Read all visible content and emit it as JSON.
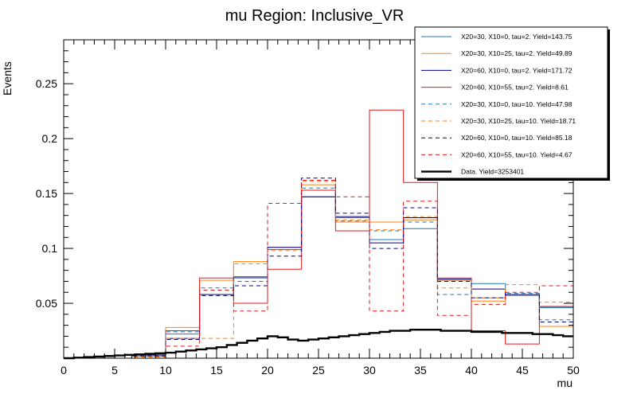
{
  "chart_data": {
    "type": "step",
    "title": "mu Region: Inclusive_VR",
    "xlabel": "mu",
    "ylabel": "Events",
    "xlim": [
      0,
      50
    ],
    "ylim": [
      0,
      0.29
    ],
    "xticks": [
      0,
      5,
      10,
      15,
      20,
      25,
      30,
      35,
      40,
      45,
      50
    ],
    "xtick_labels": [
      "0",
      "5",
      "10",
      "15",
      "20",
      "25",
      "30",
      "35",
      "40",
      "45",
      "50"
    ],
    "yticks": [
      0.05,
      0.1,
      0.15,
      0.2,
      0.25
    ],
    "ytick_labels": [
      "0.05",
      "0.1",
      "0.15",
      "0.2",
      "0.25"
    ],
    "bin_edges": [
      0,
      3.33,
      6.67,
      10,
      13.33,
      16.67,
      20,
      23.33,
      26.67,
      30,
      33.33,
      36.67,
      40,
      43.33,
      46.67,
      50
    ],
    "series": [
      {
        "name": "X20=30, X10=0, tau=2. Yield=143.75",
        "color": "#1f77b4",
        "dash": false,
        "width": 1,
        "values": [
          0,
          0,
          0.002,
          0.022,
          0.058,
          0.073,
          0.099,
          0.147,
          0.128,
          0.108,
          0.118,
          0.071,
          0.068,
          0.057,
          0.046
        ]
      },
      {
        "name": "X20=30, X10=25, tau=2. Yield=49.89",
        "color": "#ff7f0e",
        "dash": false,
        "width": 1,
        "values": [
          0,
          0,
          0.003,
          0.028,
          0.071,
          0.088,
          0.101,
          0.158,
          0.124,
          0.124,
          0.126,
          0.071,
          0.052,
          0.057,
          0.029
        ]
      },
      {
        "name": "X20=60, X10=0, tau=2. Yield=171.72",
        "color": "#00008b",
        "dash": false,
        "width": 1,
        "values": [
          0,
          0,
          0.003,
          0.018,
          0.058,
          0.074,
          0.101,
          0.147,
          0.129,
          0.105,
          0.128,
          0.072,
          0.063,
          0.058,
          0.047
        ]
      },
      {
        "name": "X20=60, X10=55, tau=2. Yield=8.61",
        "color": "#e31a1c",
        "dash": false,
        "width": 1,
        "values": [
          0,
          0,
          0,
          0.025,
          0.073,
          0.05,
          0.081,
          0.153,
          0.116,
          0.226,
          0.16,
          0.073,
          0.025,
          0.013,
          0.047
        ]
      },
      {
        "name": "X20=30, X10=0, tau=10. Yield=47.98",
        "color": "#1f77b4",
        "dash": true,
        "width": 1,
        "values": [
          0,
          0,
          0.002,
          0.024,
          0.064,
          0.07,
          0.099,
          0.155,
          0.125,
          0.116,
          0.124,
          0.058,
          0.055,
          0.059,
          0.035
        ]
      },
      {
        "name": "X20=30, X10=25, tau=10. Yield=18.71",
        "color": "#ff7f0e",
        "dash": true,
        "width": 1,
        "values": [
          0,
          0,
          0.001,
          0.018,
          0.018,
          0.086,
          0.098,
          0.161,
          0.126,
          0.117,
          0.129,
          0.064,
          0.055,
          0.067,
          0.051
        ]
      },
      {
        "name": "X20=60, X10=0, tau=10. Yield=85.18",
        "color": "#00008b",
        "dash": true,
        "width": 1,
        "values": [
          0,
          0,
          0.002,
          0.017,
          0.057,
          0.066,
          0.093,
          0.164,
          0.132,
          0.1,
          0.137,
          0.07,
          0.055,
          0.058,
          0.033
        ]
      },
      {
        "name": "X20=60, X10=55, tau=10. Yield=4.67",
        "color": "#e31a1c",
        "dash": true,
        "width": 1,
        "values": [
          0,
          0,
          0,
          0.011,
          0.062,
          0.043,
          0.141,
          0.162,
          0.147,
          0.043,
          0.143,
          0.039,
          0.049,
          0.06,
          0.066
        ]
      },
      {
        "name": "Data. Yield=3253401",
        "color": "#000000",
        "dash": false,
        "width": 2.4,
        "step": 1,
        "x_start": 0,
        "values": [
          0,
          0.0005,
          0.001,
          0.0015,
          0.002,
          0.0025,
          0.003,
          0.0035,
          0.004,
          0.0045,
          0.005,
          0.006,
          0.007,
          0.008,
          0.009,
          0.01,
          0.012,
          0.014,
          0.016,
          0.018,
          0.02,
          0.019,
          0.017,
          0.016,
          0.017,
          0.018,
          0.019,
          0.02,
          0.021,
          0.022,
          0.023,
          0.024,
          0.025,
          0.025,
          0.026,
          0.026,
          0.026,
          0.025,
          0.025,
          0.025,
          0.024,
          0.024,
          0.024,
          0.023,
          0.023,
          0.023,
          0.022,
          0.022,
          0.021,
          0.02
        ]
      }
    ]
  }
}
